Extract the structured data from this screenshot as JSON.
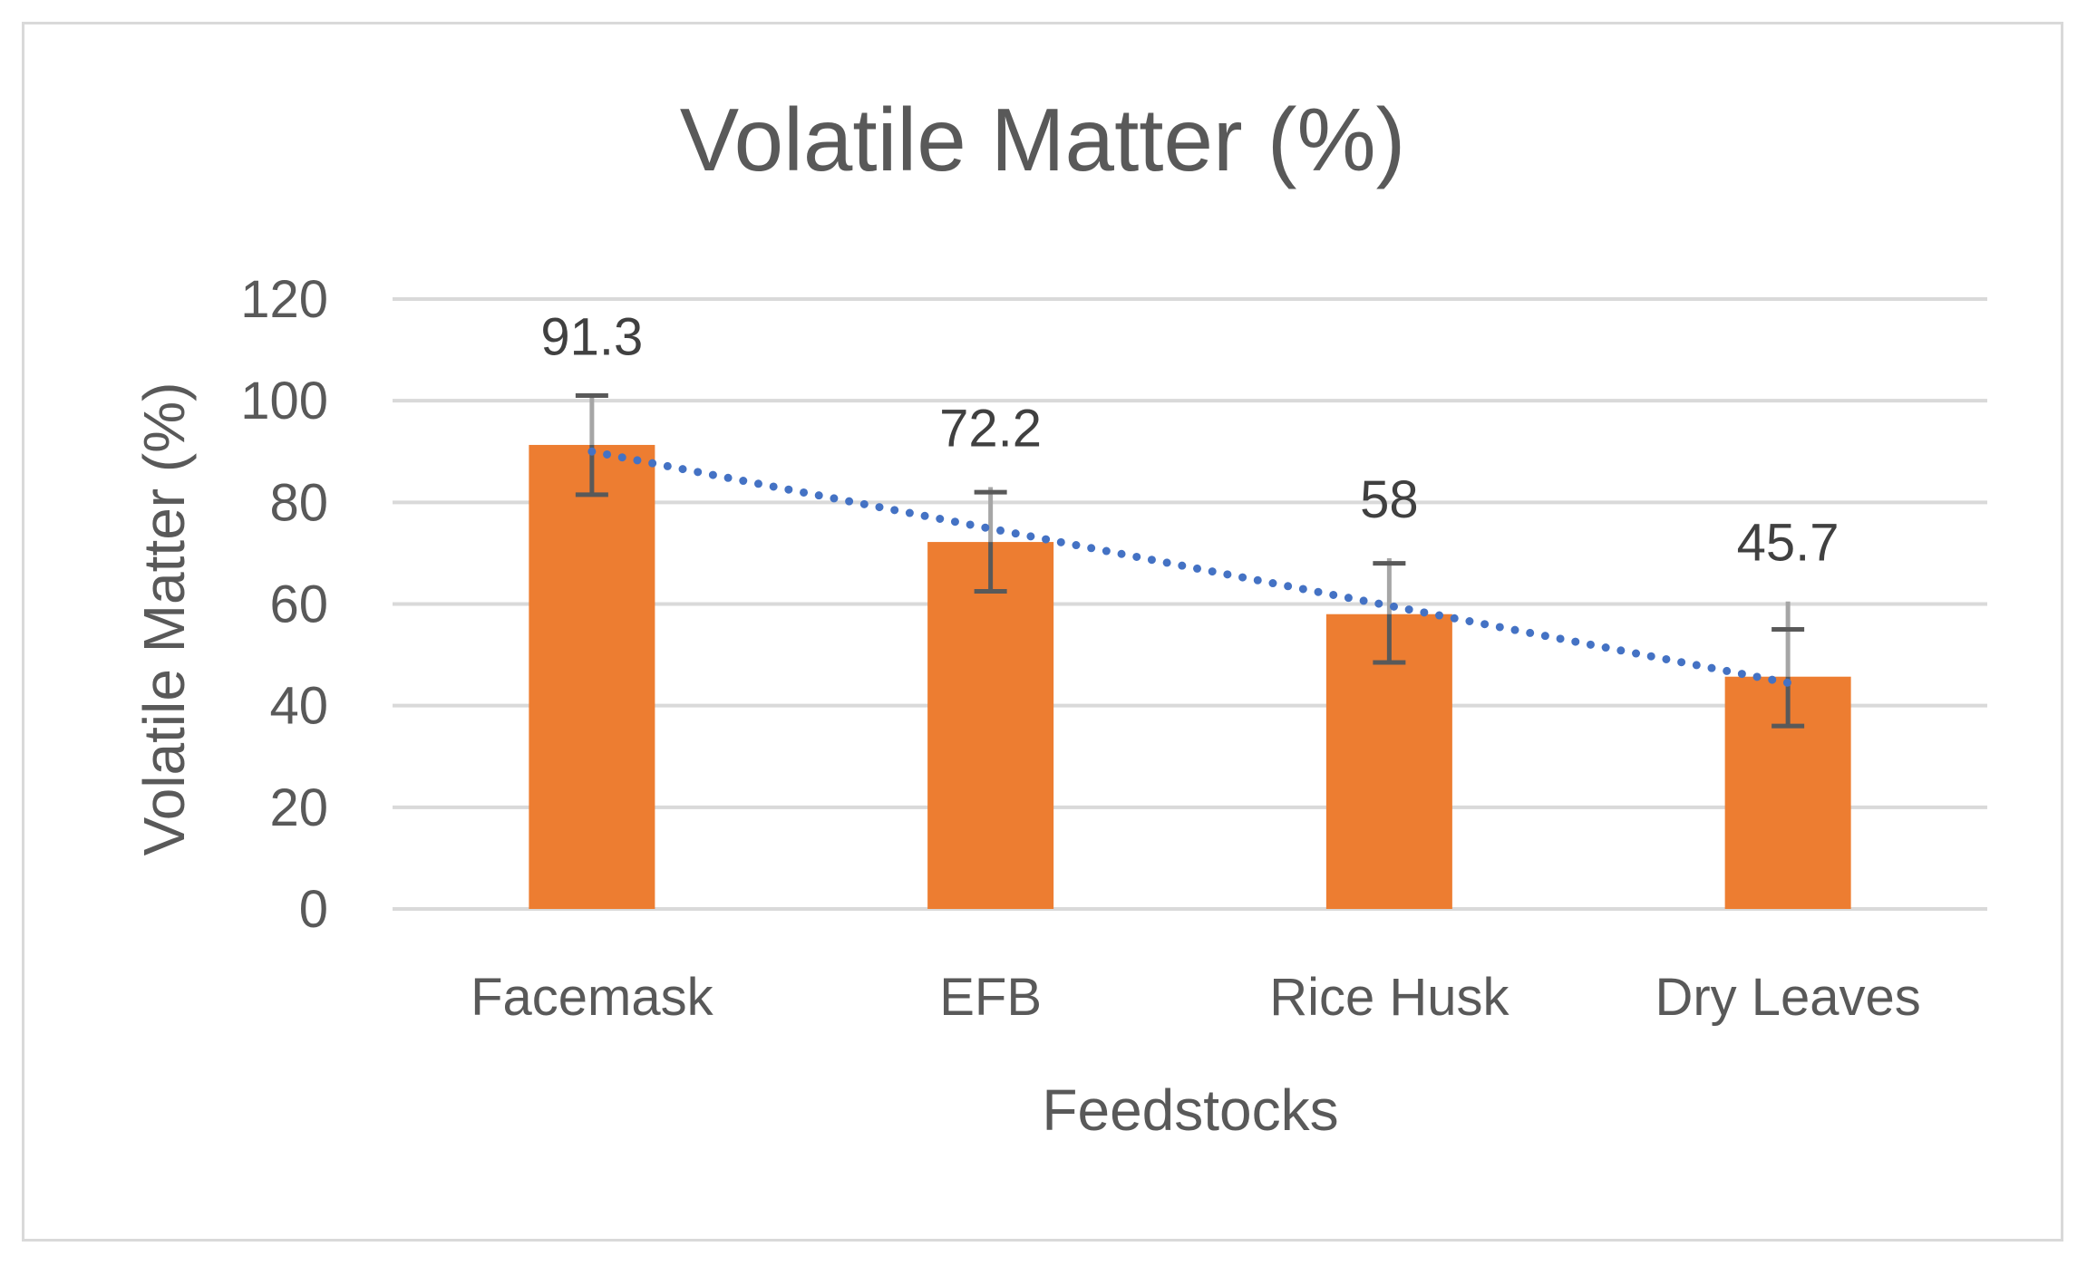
{
  "chart_data": {
    "type": "bar",
    "title": "Volatile Matter (%)",
    "xlabel": "Feedstocks",
    "ylabel": "Volatile Matter (%)",
    "categories": [
      "Facemask",
      "EFB",
      "Rice Husk",
      "Dry Leaves"
    ],
    "values": [
      91.3,
      72.2,
      58,
      45.7
    ],
    "data_labels": [
      "91.3",
      "72.2",
      "58",
      "45.7"
    ],
    "error_bars": [
      {
        "low": 81.5,
        "high": 101,
        "cap": 101
      },
      {
        "low": 62.5,
        "high": 83,
        "cap": 82
      },
      {
        "low": 48.5,
        "high": 69,
        "cap": 68
      },
      {
        "low": 36,
        "high": 60.5,
        "cap": 55
      }
    ],
    "trendline": {
      "type": "linear",
      "style": "dotted",
      "start": 90,
      "end": 44.5
    },
    "ylim": [
      0,
      120
    ],
    "yticks": [
      0,
      20,
      40,
      60,
      80,
      100,
      120
    ],
    "ytick_labels": [
      "0",
      "20",
      "40",
      "60",
      "80",
      "100",
      "120"
    ],
    "grid": true,
    "legend": "none",
    "colors": {
      "bar": "#ED7D31",
      "trendline": "#4472C4",
      "error_bar": "#595959",
      "error_bar_light": "#A6A6A6",
      "grid": "#D9D9D9",
      "text": "#595959",
      "label": "#404040"
    }
  }
}
